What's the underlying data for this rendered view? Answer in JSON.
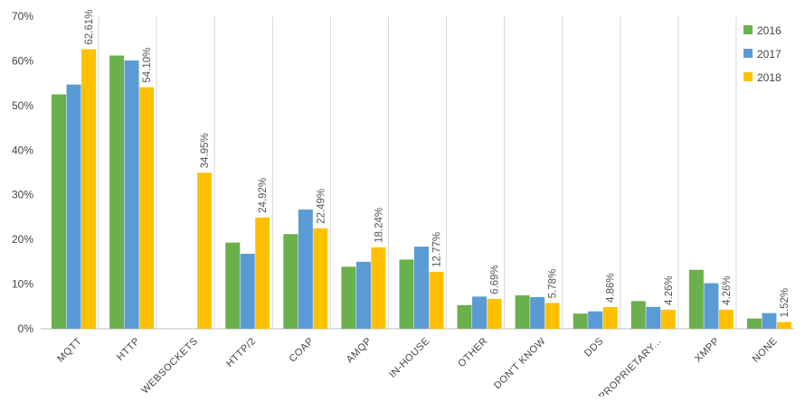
{
  "chart_data": {
    "type": "bar",
    "title": "",
    "xlabel": "",
    "ylabel": "",
    "ylim": [
      0,
      70
    ],
    "yticks": [
      0,
      10,
      20,
      30,
      40,
      50,
      60,
      70
    ],
    "ytick_suffix": "%",
    "grid": "vertical separators between categories",
    "legend_position": "top-right",
    "categories": [
      "MQTT",
      "HTTP",
      "WEBSOCKETS",
      "HTTP/2",
      "COAP",
      "AMQP",
      "IN-HOUSE",
      "OTHER",
      "DON'T KNOW",
      "DDS",
      "PROPRIETARY...",
      "XMPP",
      "NONE"
    ],
    "series": [
      {
        "name": "2016",
        "color": "#6ab04c",
        "values": [
          52.5,
          61.2,
          null,
          19.3,
          21.2,
          13.9,
          15.5,
          5.3,
          7.5,
          3.4,
          6.2,
          13.2,
          2.3
        ]
      },
      {
        "name": "2017",
        "color": "#5b9bd5",
        "values": [
          54.7,
          60.1,
          null,
          16.8,
          26.7,
          15.0,
          18.4,
          7.2,
          7.1,
          3.9,
          4.9,
          10.2,
          3.5
        ]
      },
      {
        "name": "2018",
        "color": "#ffc000",
        "values": [
          62.61,
          54.1,
          34.95,
          24.92,
          22.49,
          18.24,
          12.77,
          6.69,
          5.78,
          4.86,
          4.26,
          4.26,
          1.52
        ]
      }
    ],
    "data_labels": [
      "62.61%",
      "54.10%",
      "34.95%",
      "24.92%",
      "22.49%",
      "18.24%",
      "12.77%",
      "6.69%",
      "5.78%",
      "4.86%",
      "4.26%",
      "4.26%",
      "1.52%"
    ],
    "data_label_series": "2018"
  }
}
